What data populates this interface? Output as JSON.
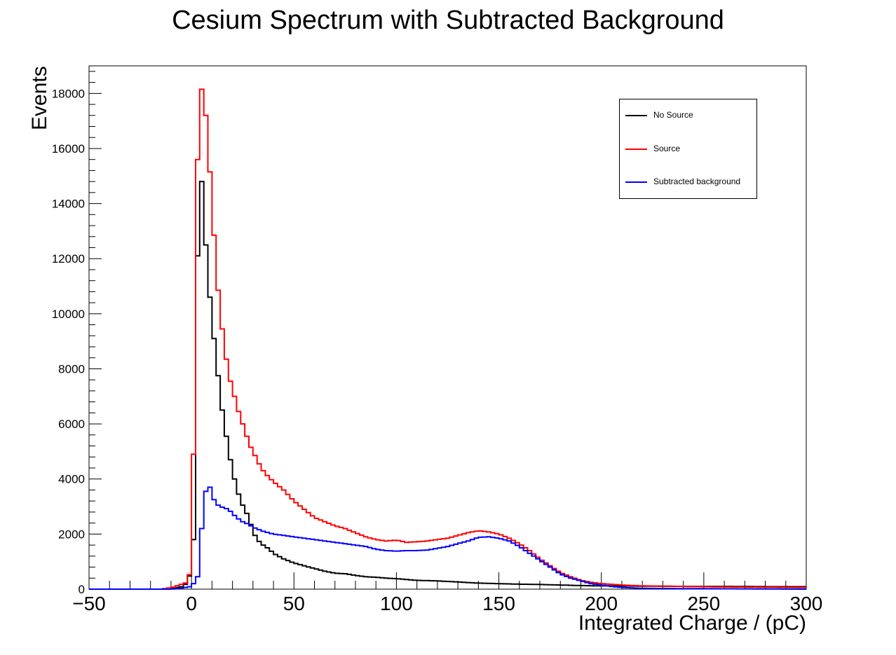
{
  "chart_data": {
    "type": "line",
    "title": "Cesium Spectrum with Subtracted Background",
    "xlabel": "Integrated Charge / (pC)",
    "ylabel": "Events",
    "xlim": [
      -50,
      300
    ],
    "ylim": [
      0,
      19000
    ],
    "x_ticks": [
      -50,
      0,
      50,
      100,
      150,
      200,
      250,
      300
    ],
    "y_ticks": [
      0,
      2000,
      4000,
      6000,
      8000,
      10000,
      12000,
      14000,
      16000,
      18000
    ],
    "grid": false,
    "legend_position": "top-right",
    "series": [
      {
        "name": "No Source",
        "color": "#000000",
        "points": [
          [
            -50,
            0
          ],
          [
            -12,
            0
          ],
          [
            -8,
            40
          ],
          [
            -4,
            100
          ],
          [
            -2,
            250
          ],
          [
            0,
            700
          ],
          [
            1,
            1800
          ],
          [
            2,
            4600
          ],
          [
            3,
            12100
          ],
          [
            4,
            16000
          ],
          [
            5,
            14800
          ],
          [
            6,
            13500
          ],
          [
            8,
            11500
          ],
          [
            10,
            9700
          ],
          [
            12,
            8500
          ],
          [
            14,
            7000
          ],
          [
            16,
            6000
          ],
          [
            18,
            5100
          ],
          [
            20,
            4300
          ],
          [
            22,
            3700
          ],
          [
            24,
            3200
          ],
          [
            26,
            2900
          ],
          [
            28,
            2600
          ],
          [
            30,
            2100
          ],
          [
            32,
            1800
          ],
          [
            35,
            1600
          ],
          [
            38,
            1450
          ],
          [
            40,
            1300
          ],
          [
            45,
            1100
          ],
          [
            50,
            950
          ],
          [
            55,
            850
          ],
          [
            60,
            750
          ],
          [
            65,
            650
          ],
          [
            70,
            580
          ],
          [
            75,
            560
          ],
          [
            80,
            500
          ],
          [
            85,
            450
          ],
          [
            90,
            430
          ],
          [
            95,
            400
          ],
          [
            100,
            380
          ],
          [
            110,
            320
          ],
          [
            120,
            300
          ],
          [
            130,
            260
          ],
          [
            140,
            220
          ],
          [
            150,
            200
          ],
          [
            160,
            180
          ],
          [
            170,
            170
          ],
          [
            180,
            150
          ],
          [
            190,
            130
          ],
          [
            200,
            120
          ],
          [
            220,
            110
          ],
          [
            240,
            100
          ],
          [
            260,
            100
          ],
          [
            280,
            90
          ],
          [
            300,
            90
          ]
        ]
      },
      {
        "name": "Source",
        "color": "#ff0000",
        "points": [
          [
            -50,
            0
          ],
          [
            -15,
            0
          ],
          [
            -10,
            50
          ],
          [
            -6,
            150
          ],
          [
            -2,
            250
          ],
          [
            0,
            800
          ],
          [
            1,
            4900
          ],
          [
            2,
            13000
          ],
          [
            4,
            18200
          ],
          [
            6,
            18100
          ],
          [
            8,
            16300
          ],
          [
            10,
            14000
          ],
          [
            12,
            11700
          ],
          [
            14,
            10000
          ],
          [
            16,
            8900
          ],
          [
            18,
            7800
          ],
          [
            20,
            7300
          ],
          [
            22,
            6700
          ],
          [
            24,
            6200
          ],
          [
            26,
            5800
          ],
          [
            28,
            5300
          ],
          [
            30,
            5000
          ],
          [
            32,
            4700
          ],
          [
            34,
            4400
          ],
          [
            36,
            4200
          ],
          [
            40,
            3900
          ],
          [
            45,
            3600
          ],
          [
            50,
            3200
          ],
          [
            55,
            2900
          ],
          [
            60,
            2600
          ],
          [
            65,
            2450
          ],
          [
            70,
            2300
          ],
          [
            75,
            2200
          ],
          [
            80,
            2050
          ],
          [
            85,
            1900
          ],
          [
            90,
            1800
          ],
          [
            95,
            1750
          ],
          [
            100,
            1780
          ],
          [
            105,
            1700
          ],
          [
            110,
            1720
          ],
          [
            115,
            1750
          ],
          [
            120,
            1800
          ],
          [
            125,
            1850
          ],
          [
            130,
            1950
          ],
          [
            135,
            2050
          ],
          [
            140,
            2120
          ],
          [
            145,
            2080
          ],
          [
            150,
            2000
          ],
          [
            155,
            1850
          ],
          [
            160,
            1650
          ],
          [
            165,
            1400
          ],
          [
            170,
            1100
          ],
          [
            175,
            850
          ],
          [
            180,
            600
          ],
          [
            185,
            450
          ],
          [
            190,
            320
          ],
          [
            195,
            250
          ],
          [
            200,
            200
          ],
          [
            210,
            150
          ],
          [
            220,
            120
          ],
          [
            240,
            100
          ],
          [
            260,
            80
          ],
          [
            280,
            70
          ],
          [
            300,
            60
          ]
        ]
      },
      {
        "name": "Subtracted background",
        "color": "#0000ff",
        "points": [
          [
            -50,
            0
          ],
          [
            -10,
            0
          ],
          [
            -4,
            50
          ],
          [
            0,
            100
          ],
          [
            2,
            300
          ],
          [
            4,
            600
          ],
          [
            5,
            2200
          ],
          [
            6,
            3300
          ],
          [
            8,
            3800
          ],
          [
            9,
            3700
          ],
          [
            10,
            3400
          ],
          [
            12,
            3100
          ],
          [
            14,
            3000
          ],
          [
            16,
            2950
          ],
          [
            18,
            2900
          ],
          [
            20,
            2750
          ],
          [
            22,
            2600
          ],
          [
            25,
            2450
          ],
          [
            28,
            2350
          ],
          [
            30,
            2250
          ],
          [
            35,
            2100
          ],
          [
            40,
            2000
          ],
          [
            45,
            1950
          ],
          [
            50,
            1900
          ],
          [
            55,
            1850
          ],
          [
            60,
            1800
          ],
          [
            65,
            1750
          ],
          [
            70,
            1700
          ],
          [
            75,
            1650
          ],
          [
            80,
            1600
          ],
          [
            85,
            1550
          ],
          [
            90,
            1450
          ],
          [
            95,
            1400
          ],
          [
            100,
            1380
          ],
          [
            105,
            1400
          ],
          [
            110,
            1400
          ],
          [
            115,
            1420
          ],
          [
            120,
            1480
          ],
          [
            125,
            1550
          ],
          [
            130,
            1650
          ],
          [
            135,
            1750
          ],
          [
            140,
            1880
          ],
          [
            145,
            1900
          ],
          [
            150,
            1850
          ],
          [
            155,
            1750
          ],
          [
            160,
            1550
          ],
          [
            165,
            1300
          ],
          [
            170,
            1050
          ],
          [
            175,
            800
          ],
          [
            180,
            550
          ],
          [
            185,
            400
          ],
          [
            190,
            300
          ],
          [
            195,
            200
          ],
          [
            200,
            150
          ],
          [
            205,
            100
          ],
          [
            210,
            60
          ],
          [
            220,
            30
          ],
          [
            240,
            20
          ],
          [
            300,
            0
          ]
        ]
      }
    ]
  }
}
